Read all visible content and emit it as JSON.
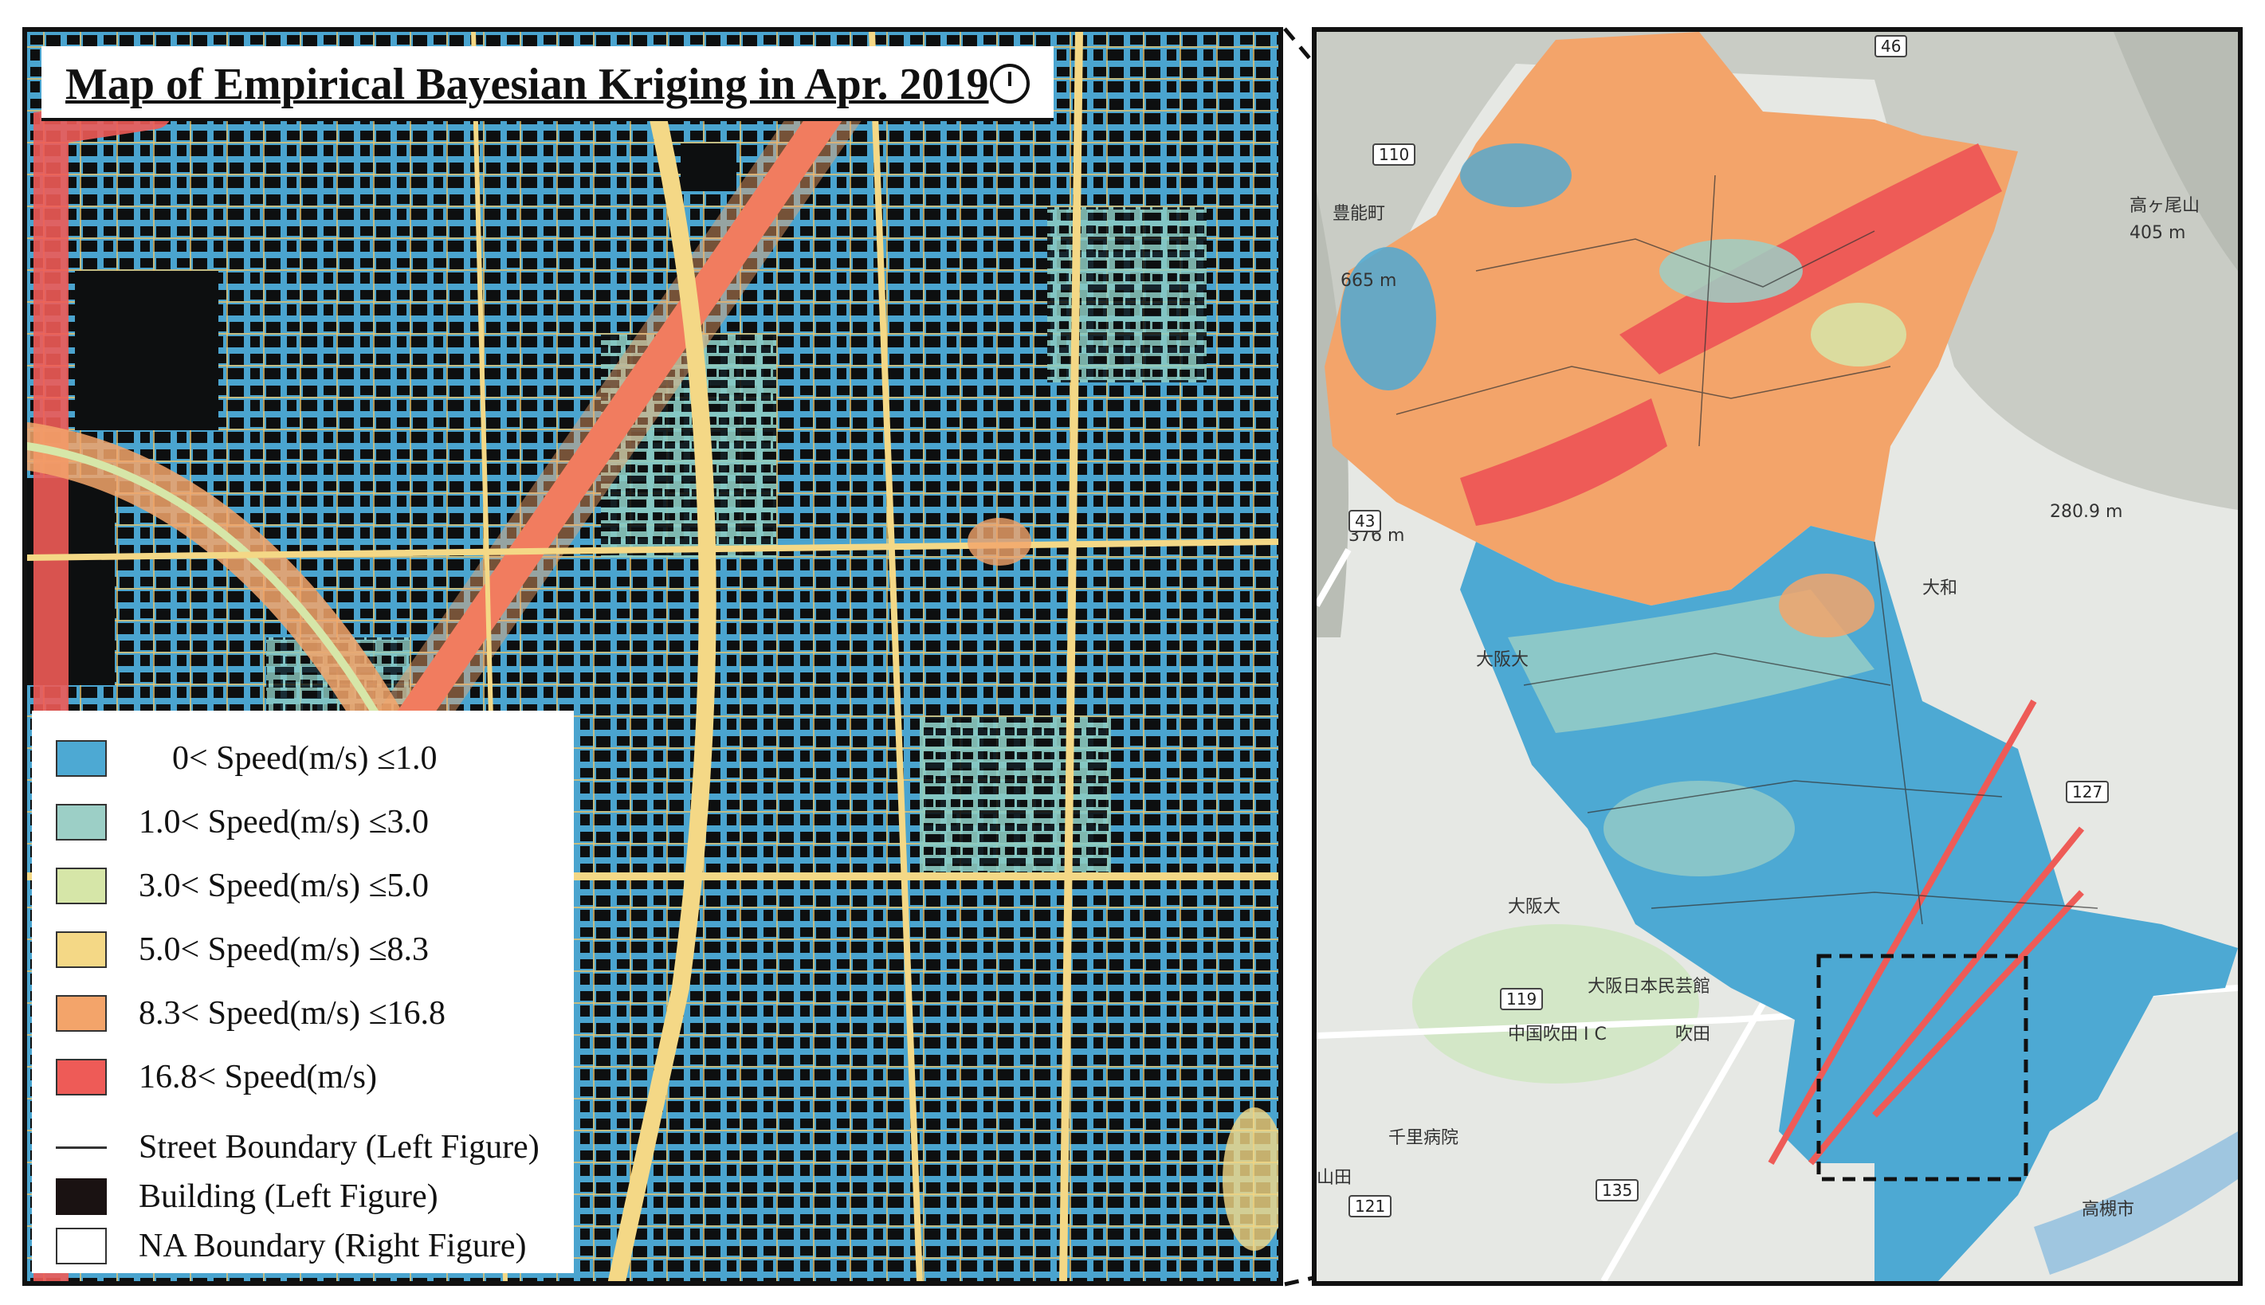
{
  "title": "Map of Empirical Bayesian Kriging in Apr. 2019",
  "legend": [
    {
      "label": "0< Speed(m/s) ≤1.0",
      "color": "#4da9d3"
    },
    {
      "label": "1.0< Speed(m/s) ≤3.0",
      "color": "#9ccfc6"
    },
    {
      "label": "3.0< Speed(m/s) ≤5.0",
      "color": "#d6e6a8"
    },
    {
      "label": "5.0< Speed(m/s) ≤8.3",
      "color": "#f4d886"
    },
    {
      "label": "8.3< Speed(m/s) ≤16.8",
      "color": "#f3a46a"
    },
    {
      "label": "16.8< Speed(m/s)",
      "color": "#ee5b57"
    }
  ],
  "legend_extra": {
    "street": "Street Boundary (Left Figure)",
    "building": "Building (Left Figure)",
    "na": "NA Boundary (Right Figure)"
  },
  "right_map_labels": {
    "toyono": "豊能町",
    "takagamine": "高ヶ尾山",
    "elev_405": "405 m",
    "elev_665": "665 m",
    "elev_376": "376 m",
    "elev_280": "280.9 m",
    "osaka_univ_1": "大阪大",
    "osaka_univ_2": "大阪大",
    "daiwa": "大和",
    "ibaraki": "大阪日本民芸館",
    "suita_ic": "中国吹田 I C",
    "suita": "吹田",
    "senri": "千里病院",
    "yamada": "山田",
    "takatsuki": "高槻市",
    "r110": "110",
    "r43": "43",
    "r119": "119",
    "r121": "121",
    "r135": "135",
    "r127": "127",
    "r46": "46"
  }
}
